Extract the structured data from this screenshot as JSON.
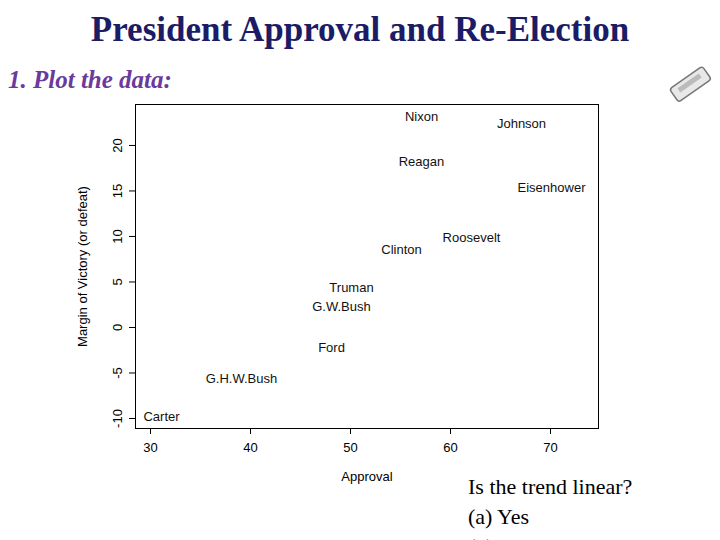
{
  "chart_data": {
    "type": "scatter",
    "title": "President Approval and Re-Election",
    "subtitle": "1. Plot the data:",
    "x_label": "Approval",
    "y_label": "Margin of Victory (or defeat)",
    "labels": [
      "Nixon",
      "Johnson",
      "Reagan",
      "Eisenhower",
      "Roosevelt",
      "Clinton",
      "Truman",
      "G.W.Bush",
      "Ford",
      "G.H.W.Bush",
      "Carter"
    ],
    "x": [
      57.1,
      67.1,
      57.1,
      70.1,
      62.1,
      55.1,
      50.1,
      49.1,
      48.1,
      39.1,
      31.1
    ],
    "values": [
      23.1,
      22.4,
      18.2,
      15.3,
      9.9,
      8.5,
      4.4,
      2.3,
      -2.2,
      -5.6,
      -9.8
    ],
    "marker": "label",
    "xlim": [
      28.5,
      74.8
    ],
    "xticks": [
      30,
      40,
      50,
      60,
      70
    ],
    "ylim": [
      -11.1,
      24.5
    ],
    "yticks": [
      -10,
      -5,
      0,
      5,
      10,
      15,
      20
    ],
    "grid": false,
    "annotations": [
      "Is the trend linear?",
      "(a) Yes",
      "(b) No"
    ]
  }
}
